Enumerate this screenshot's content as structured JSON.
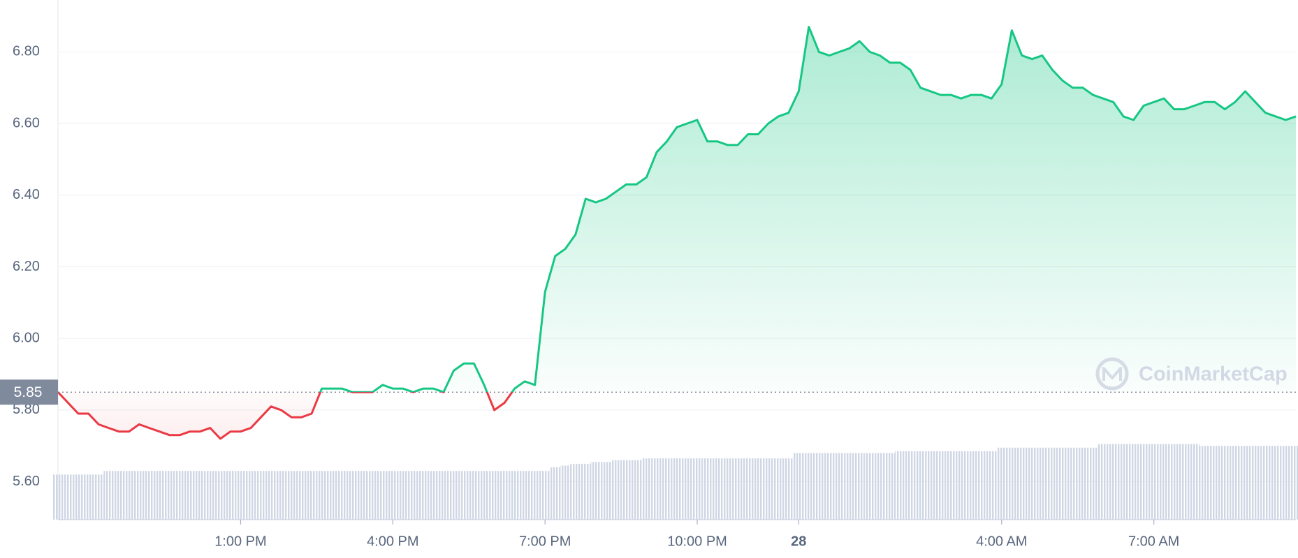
{
  "chart_data": {
    "type": "line",
    "x": [
      9.4,
      9.6,
      9.8,
      10,
      10.2,
      10.4,
      10.6,
      10.8,
      11,
      11.2,
      11.4,
      11.6,
      11.8,
      12,
      12.2,
      12.4,
      12.6,
      12.8,
      13,
      13.2,
      13.4,
      13.6,
      13.8,
      14,
      14.2,
      14.4,
      14.6,
      14.8,
      15,
      15.2,
      15.4,
      15.6,
      15.8,
      16,
      16.2,
      16.4,
      16.6,
      16.8,
      17,
      17.2,
      17.4,
      17.6,
      17.8,
      18,
      18.2,
      18.4,
      18.6,
      18.8,
      19,
      19.2,
      19.4,
      19.6,
      19.8,
      20,
      20.2,
      20.4,
      20.6,
      20.8,
      21,
      21.2,
      21.4,
      21.6,
      21.8,
      22,
      22.2,
      22.4,
      22.6,
      22.8,
      23,
      23.2,
      23.4,
      23.6,
      23.8,
      24,
      24.2,
      24.4,
      24.6,
      24.8,
      25,
      25.2,
      25.4,
      25.6,
      25.8,
      26,
      26.2,
      26.4,
      26.6,
      26.8,
      27,
      27.2,
      27.4,
      27.6,
      27.8,
      28,
      28.2,
      28.4,
      28.6,
      28.8,
      29,
      29.2,
      29.4,
      29.6,
      29.8,
      30,
      30.2,
      30.4,
      30.6,
      30.8,
      31,
      31.2,
      31.4,
      31.6,
      31.8,
      32,
      32.2,
      32.4,
      32.6,
      32.8,
      33,
      33.2,
      33.4,
      33.6,
      33.8
    ],
    "values": [
      5.85,
      5.82,
      5.79,
      5.79,
      5.76,
      5.75,
      5.74,
      5.74,
      5.76,
      5.75,
      5.74,
      5.73,
      5.73,
      5.74,
      5.74,
      5.75,
      5.72,
      5.74,
      5.74,
      5.75,
      5.78,
      5.81,
      5.8,
      5.78,
      5.78,
      5.79,
      5.86,
      5.86,
      5.86,
      5.85,
      5.85,
      5.85,
      5.87,
      5.86,
      5.86,
      5.85,
      5.86,
      5.86,
      5.85,
      5.91,
      5.93,
      5.93,
      5.87,
      5.8,
      5.82,
      5.86,
      5.88,
      5.87,
      6.13,
      6.23,
      6.25,
      6.29,
      6.39,
      6.38,
      6.39,
      6.41,
      6.43,
      6.43,
      6.45,
      6.52,
      6.55,
      6.59,
      6.6,
      6.61,
      6.55,
      6.55,
      6.54,
      6.54,
      6.57,
      6.57,
      6.6,
      6.62,
      6.63,
      6.69,
      6.87,
      6.8,
      6.79,
      6.8,
      6.81,
      6.83,
      6.8,
      6.79,
      6.77,
      6.77,
      6.75,
      6.7,
      6.69,
      6.68,
      6.68,
      6.67,
      6.68,
      6.68,
      6.67,
      6.71,
      6.86,
      6.79,
      6.78,
      6.79,
      6.75,
      6.72,
      6.7,
      6.7,
      6.68,
      6.67,
      6.66,
      6.62,
      6.61,
      6.65,
      6.66,
      6.67,
      6.64,
      6.64,
      6.65,
      6.66,
      6.66,
      6.64,
      6.66,
      6.69,
      6.66,
      6.63,
      6.62,
      6.61,
      6.62
    ],
    "volume": [
      5.62,
      5.62,
      5.62,
      5.62,
      5.62,
      5.63,
      5.63,
      5.63,
      5.63,
      5.63,
      5.63,
      5.63,
      5.63,
      5.63,
      5.63,
      5.63,
      5.63,
      5.63,
      5.63,
      5.63,
      5.63,
      5.63,
      5.63,
      5.63,
      5.63,
      5.63,
      5.63,
      5.63,
      5.63,
      5.63,
      5.63,
      5.63,
      5.63,
      5.63,
      5.63,
      5.63,
      5.63,
      5.63,
      5.63,
      5.63,
      5.63,
      5.63,
      5.63,
      5.63,
      5.63,
      5.63,
      5.63,
      5.63,
      5.63,
      5.64,
      5.645,
      5.65,
      5.65,
      5.655,
      5.655,
      5.66,
      5.66,
      5.66,
      5.665,
      5.665,
      5.665,
      5.665,
      5.665,
      5.665,
      5.665,
      5.665,
      5.665,
      5.665,
      5.665,
      5.665,
      5.665,
      5.665,
      5.665,
      5.68,
      5.68,
      5.68,
      5.68,
      5.68,
      5.68,
      5.68,
      5.68,
      5.68,
      5.68,
      5.685,
      5.685,
      5.685,
      5.685,
      5.685,
      5.685,
      5.685,
      5.685,
      5.685,
      5.685,
      5.695,
      5.695,
      5.695,
      5.695,
      5.695,
      5.695,
      5.695,
      5.695,
      5.695,
      5.695,
      5.705,
      5.705,
      5.705,
      5.705,
      5.705,
      5.705,
      5.705,
      5.705,
      5.705,
      5.705,
      5.7,
      5.7,
      5.7,
      5.7,
      5.7,
      5.7,
      5.7,
      5.7,
      5.7,
      5.7
    ],
    "reference_value": 5.85,
    "up_color": "#16c784",
    "down_color": "#ea3943",
    "volume_color": "#cfd6e4",
    "xlim": [
      9.4,
      33.8
    ],
    "xticks": [
      {
        "value": 13,
        "label": "1:00 PM"
      },
      {
        "value": 16,
        "label": "4:00 PM"
      },
      {
        "value": 19,
        "label": "7:00 PM"
      },
      {
        "value": 22,
        "label": "10:00 PM"
      },
      {
        "value": 24,
        "label": "28"
      },
      {
        "value": 28,
        "label": "4:00 AM"
      },
      {
        "value": 31,
        "label": "7:00 AM"
      }
    ],
    "bold_xtick": 24,
    "ylim": [
      5.494,
      6.945
    ],
    "yticks": [
      {
        "value": 5.6,
        "label": "5.60"
      },
      {
        "value": 5.8,
        "label": "5.80"
      },
      {
        "value": 6.0,
        "label": "6.00"
      },
      {
        "value": 6.2,
        "label": "6.20"
      },
      {
        "value": 6.4,
        "label": "6.40"
      },
      {
        "value": 6.6,
        "label": "6.60"
      },
      {
        "value": 6.8,
        "label": "6.80"
      }
    ],
    "grid": true,
    "watermark": "CoinMarketCap"
  }
}
